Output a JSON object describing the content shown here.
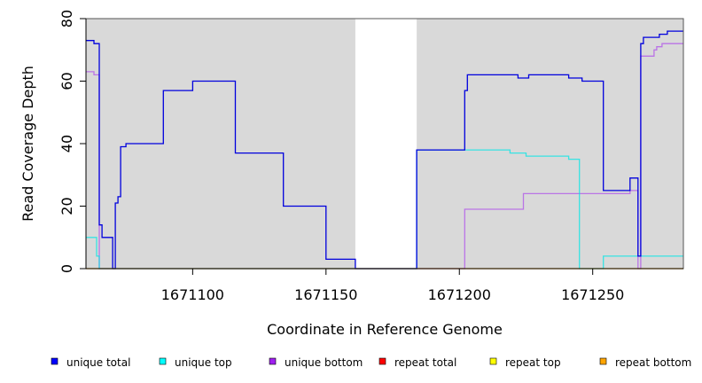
{
  "chart_data": {
    "type": "line",
    "xlabel": "Coordinate in Reference Genome",
    "ylabel": "Read Coverage Depth",
    "xlim": [
      1671060,
      1671284
    ],
    "ylim": [
      0,
      80
    ],
    "x_ticks": [
      1671100,
      1671150,
      1671200,
      1671250
    ],
    "x_tick_labels": [
      "1671100",
      "1671150",
      "1671200",
      "1671250"
    ],
    "y_ticks": [
      0,
      20,
      40,
      60,
      80
    ],
    "y_tick_labels": [
      "0",
      "20",
      "40",
      "60",
      "80"
    ],
    "shaded_regions": [
      {
        "x0": 1671060,
        "x1": 1671161,
        "color": "#d9d9d9"
      },
      {
        "x0": 1671184,
        "x1": 1671284,
        "color": "#d9d9d9"
      }
    ],
    "legend": [
      {
        "label": "unique total",
        "color": "#0000ff"
      },
      {
        "label": "unique top",
        "color": "#00ffff"
      },
      {
        "label": "unique bottom",
        "color": "#a020f0"
      },
      {
        "label": "repeat total",
        "color": "#ff0000"
      },
      {
        "label": "repeat top",
        "color": "#ffff00"
      },
      {
        "label": "repeat bottom",
        "color": "#ffa500"
      }
    ],
    "series": [
      {
        "color": "#a020f0",
        "opacity": 0.55,
        "x": [
          1671060,
          1671063,
          1671065,
          1671065,
          1671201,
          1671202,
          1671224,
          1671264,
          1671267,
          1671268,
          1671273,
          1671274,
          1671276,
          1671284
        ],
        "y": [
          63,
          62,
          62,
          0,
          0,
          19,
          24,
          25,
          0,
          68,
          70,
          71,
          72,
          72
        ]
      },
      {
        "color": "#00e5e5",
        "opacity": 0.75,
        "x": [
          1671060,
          1671064,
          1671065,
          1671065,
          1671184,
          1671219,
          1671225,
          1671241,
          1671245,
          1671245,
          1671254,
          1671284
        ],
        "y": [
          10,
          4,
          0,
          0,
          38,
          37,
          36,
          35,
          0,
          0,
          4,
          4
        ]
      },
      {
        "color": "#0000dd",
        "opacity": 1,
        "x": [
          1671060,
          1671063,
          1671065,
          1671066,
          1671070,
          1671071,
          1671072,
          1671073,
          1671075,
          1671089,
          1671100,
          1671116,
          1671134,
          1671150,
          1671161,
          1671184,
          1671202,
          1671203,
          1671222,
          1671226,
          1671241,
          1671246,
          1671254,
          1671264,
          1671267,
          1671268,
          1671269,
          1671272,
          1671275,
          1671278,
          1671284
        ],
        "y": [
          73,
          72,
          14,
          10,
          0,
          21,
          23,
          39,
          40,
          57,
          60,
          37,
          20,
          3,
          0,
          38,
          57,
          62,
          61,
          62,
          61,
          60,
          25,
          29,
          4,
          72,
          74,
          74,
          75,
          76,
          76
        ]
      },
      {
        "color": "#ffa500",
        "opacity": 1,
        "x": [
          1671060,
          1671284
        ],
        "y": [
          0,
          0
        ]
      }
    ]
  }
}
